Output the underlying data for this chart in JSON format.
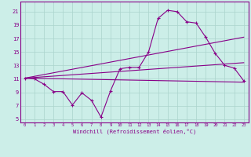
{
  "xlabel": "Windchill (Refroidissement éolien,°C)",
  "xlim": [
    -0.5,
    23.5
  ],
  "ylim": [
    4.5,
    22.5
  ],
  "yticks": [
    5,
    7,
    9,
    11,
    13,
    15,
    17,
    19,
    21
  ],
  "xticks": [
    0,
    1,
    2,
    3,
    4,
    5,
    6,
    7,
    8,
    9,
    10,
    11,
    12,
    13,
    14,
    15,
    16,
    17,
    18,
    19,
    20,
    21,
    22,
    23
  ],
  "bg_color": "#cceee8",
  "grid_color": "#aad4cc",
  "line_color": "#880088",
  "line1_x": [
    0,
    1,
    2,
    3,
    4,
    5,
    6,
    7,
    8,
    9,
    10,
    11,
    12,
    13,
    14,
    15,
    16,
    17,
    18,
    19,
    20,
    21,
    22,
    23
  ],
  "line1_y": [
    11.1,
    11.0,
    10.2,
    9.1,
    9.1,
    7.1,
    8.9,
    7.8,
    5.3,
    9.2,
    12.5,
    12.7,
    12.7,
    15.0,
    20.0,
    21.2,
    21.0,
    19.5,
    19.3,
    17.2,
    14.8,
    13.0,
    12.6,
    10.7
  ],
  "line2_x": [
    0,
    23
  ],
  "line2_y": [
    11.1,
    17.2
  ],
  "line3_x": [
    0,
    23
  ],
  "line3_y": [
    11.1,
    13.4
  ],
  "line4_x": [
    0,
    23
  ],
  "line4_y": [
    11.1,
    10.5
  ]
}
